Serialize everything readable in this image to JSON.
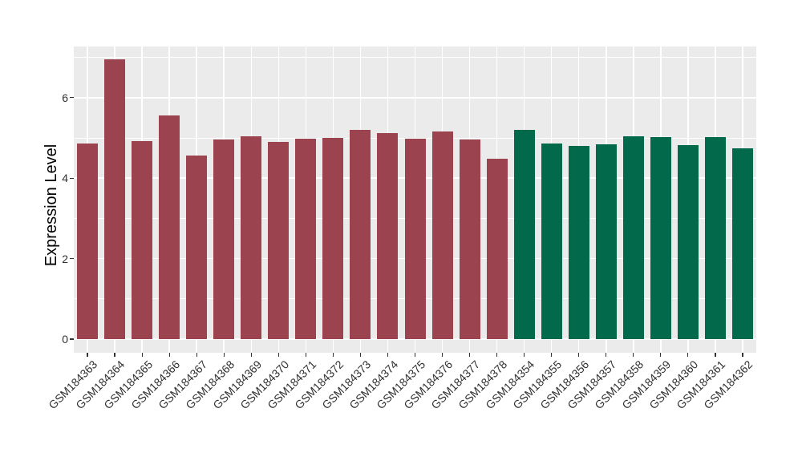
{
  "chart_data": {
    "type": "bar",
    "title": "",
    "xlabel": "",
    "ylabel": "Expression Level",
    "ylim": [
      0,
      7.3
    ],
    "yticks": [
      0,
      2,
      4,
      6
    ],
    "yticks_minor": [
      1,
      3,
      5,
      7
    ],
    "grid": "major and minor horizontal, major vertical per category",
    "legend_position": "none",
    "background_color": "#FFFFFF",
    "panel_background": "#EBEBEB",
    "grid_color": "#FFFFFF",
    "tick_color": "#333333",
    "axis_text_color": "#303030",
    "group_colors": {
      "group1": "#9B4450",
      "group2": "#02694A"
    },
    "bars": [
      {
        "label": "GSM184363",
        "value": 4.86,
        "group": "group1"
      },
      {
        "label": "GSM184364",
        "value": 6.96,
        "group": "group1"
      },
      {
        "label": "GSM184365",
        "value": 4.93,
        "group": "group1"
      },
      {
        "label": "GSM184366",
        "value": 5.56,
        "group": "group1"
      },
      {
        "label": "GSM184367",
        "value": 4.57,
        "group": "group1"
      },
      {
        "label": "GSM184368",
        "value": 4.96,
        "group": "group1"
      },
      {
        "label": "GSM184369",
        "value": 5.05,
        "group": "group1"
      },
      {
        "label": "GSM184370",
        "value": 4.9,
        "group": "group1"
      },
      {
        "label": "GSM184371",
        "value": 4.98,
        "group": "group1"
      },
      {
        "label": "GSM184372",
        "value": 5.01,
        "group": "group1"
      },
      {
        "label": "GSM184373",
        "value": 5.19,
        "group": "group1"
      },
      {
        "label": "GSM184374",
        "value": 5.12,
        "group": "group1"
      },
      {
        "label": "GSM184375",
        "value": 4.99,
        "group": "group1"
      },
      {
        "label": "GSM184376",
        "value": 5.15,
        "group": "group1"
      },
      {
        "label": "GSM184377",
        "value": 4.96,
        "group": "group1"
      },
      {
        "label": "GSM184378",
        "value": 4.49,
        "group": "group1"
      },
      {
        "label": "GSM184354",
        "value": 5.19,
        "group": "group2"
      },
      {
        "label": "GSM184355",
        "value": 4.86,
        "group": "group2"
      },
      {
        "label": "GSM184356",
        "value": 4.8,
        "group": "group2"
      },
      {
        "label": "GSM184357",
        "value": 4.84,
        "group": "group2"
      },
      {
        "label": "GSM184358",
        "value": 5.04,
        "group": "group2"
      },
      {
        "label": "GSM184359",
        "value": 5.02,
        "group": "group2"
      },
      {
        "label": "GSM184360",
        "value": 4.82,
        "group": "group2"
      },
      {
        "label": "GSM184361",
        "value": 5.02,
        "group": "group2"
      },
      {
        "label": "GSM184362",
        "value": 4.75,
        "group": "group2"
      }
    ]
  }
}
